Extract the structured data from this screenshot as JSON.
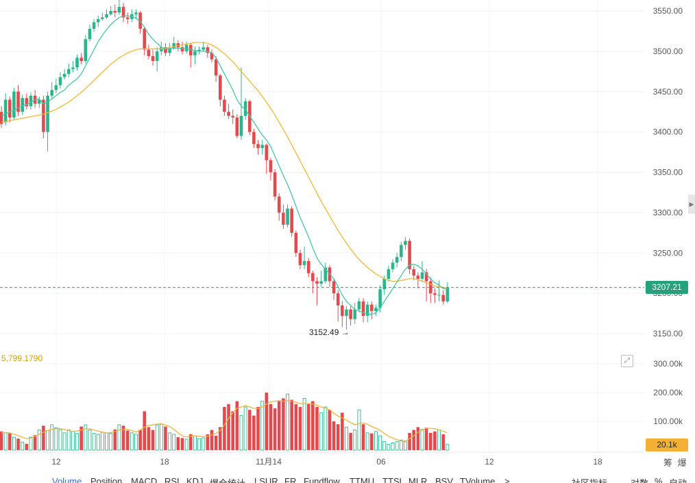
{
  "chart_data": {
    "type": "candlestick",
    "y_axis": {
      "ticks": [
        "3550.00",
        "3500.00",
        "3450.00",
        "3400.00",
        "3350.00",
        "3300.00",
        "3250.00",
        "3200.00",
        "3150.00"
      ],
      "range": [
        3135,
        3565
      ]
    },
    "x_axis": {
      "ticks": [
        "12",
        "18",
        "11月14",
        "06",
        "12",
        "18"
      ]
    },
    "last_price": "3207.21",
    "min_label": "3152.49",
    "candles": [
      [
        3425,
        3410,
        3432,
        3405
      ],
      [
        3412,
        3440,
        3448,
        3408
      ],
      [
        3440,
        3418,
        3444,
        3412
      ],
      [
        3418,
        3450,
        3455,
        3415
      ],
      [
        3450,
        3425,
        3458,
        3420
      ],
      [
        3425,
        3442,
        3446,
        3421
      ],
      [
        3442,
        3432,
        3448,
        3428
      ],
      [
        3432,
        3445,
        3449,
        3428
      ],
      [
        3445,
        3435,
        3452,
        3430
      ],
      [
        3435,
        3440,
        3444,
        3430
      ],
      [
        3440,
        3400,
        3445,
        3392
      ],
      [
        3400,
        3445,
        3450,
        3376
      ],
      [
        3445,
        3452,
        3462,
        3441
      ],
      [
        3452,
        3458,
        3466,
        3448
      ],
      [
        3458,
        3468,
        3474,
        3454
      ],
      [
        3468,
        3472,
        3478,
        3465
      ],
      [
        3472,
        3478,
        3485,
        3468
      ],
      [
        3478,
        3480,
        3488,
        3474
      ],
      [
        3480,
        3492,
        3496,
        3476
      ],
      [
        3492,
        3488,
        3498,
        3484
      ],
      [
        3488,
        3515,
        3520,
        3485
      ],
      [
        3515,
        3528,
        3533,
        3512
      ],
      [
        3528,
        3536,
        3540,
        3524
      ],
      [
        3536,
        3540,
        3544,
        3530
      ],
      [
        3540,
        3542,
        3548,
        3538
      ],
      [
        3542,
        3546,
        3552,
        3540
      ],
      [
        3546,
        3550,
        3556,
        3544
      ],
      [
        3550,
        3548,
        3558,
        3542
      ],
      [
        3548,
        3555,
        3565,
        3545
      ],
      [
        3555,
        3542,
        3560,
        3536
      ],
      [
        3542,
        3540,
        3548,
        3534
      ],
      [
        3540,
        3546,
        3552,
        3536
      ],
      [
        3546,
        3548,
        3552,
        3540
      ],
      [
        3548,
        3528,
        3550,
        3522
      ],
      [
        3528,
        3502,
        3530,
        3495
      ],
      [
        3502,
        3494,
        3508,
        3490
      ],
      [
        3494,
        3488,
        3502,
        3482
      ],
      [
        3488,
        3500,
        3505,
        3475
      ],
      [
        3500,
        3505,
        3512,
        3495
      ],
      [
        3505,
        3498,
        3510,
        3494
      ],
      [
        3498,
        3504,
        3510,
        3494
      ],
      [
        3504,
        3510,
        3518,
        3502
      ],
      [
        3510,
        3505,
        3514,
        3500
      ],
      [
        3505,
        3500,
        3512,
        3496
      ],
      [
        3500,
        3508,
        3512,
        3497
      ],
      [
        3508,
        3495,
        3510,
        3480
      ],
      [
        3495,
        3500,
        3506,
        3484
      ],
      [
        3500,
        3502,
        3506,
        3496
      ],
      [
        3502,
        3505,
        3512,
        3500
      ],
      [
        3505,
        3498,
        3508,
        3492
      ],
      [
        3498,
        3490,
        3502,
        3486
      ],
      [
        3490,
        3470,
        3494,
        3462
      ],
      [
        3470,
        3440,
        3472,
        3432
      ],
      [
        3440,
        3425,
        3445,
        3420
      ],
      [
        3425,
        3420,
        3435,
        3416
      ],
      [
        3420,
        3418,
        3428,
        3410
      ],
      [
        3418,
        3395,
        3422,
        3392
      ],
      [
        3395,
        3420,
        3480,
        3390
      ],
      [
        3420,
        3438,
        3442,
        3415
      ],
      [
        3438,
        3400,
        3440,
        3396
      ],
      [
        3400,
        3385,
        3404,
        3380
      ],
      [
        3385,
        3380,
        3390,
        3372
      ],
      [
        3380,
        3384,
        3390,
        3372
      ],
      [
        3384,
        3365,
        3386,
        3348
      ],
      [
        3365,
        3350,
        3368,
        3340
      ],
      [
        3350,
        3320,
        3354,
        3315
      ],
      [
        3320,
        3300,
        3324,
        3290
      ],
      [
        3300,
        3285,
        3310,
        3280
      ],
      [
        3285,
        3305,
        3310,
        3282
      ],
      [
        3305,
        3275,
        3308,
        3270
      ],
      [
        3275,
        3250,
        3278,
        3245
      ],
      [
        3250,
        3235,
        3254,
        3230
      ],
      [
        3235,
        3240,
        3258,
        3230
      ],
      [
        3240,
        3225,
        3244,
        3220
      ],
      [
        3225,
        3215,
        3228,
        3200
      ],
      [
        3215,
        3212,
        3220,
        3185
      ],
      [
        3212,
        3215,
        3228,
        3208
      ],
      [
        3215,
        3232,
        3238,
        3212
      ],
      [
        3232,
        3215,
        3235,
        3208
      ],
      [
        3215,
        3200,
        3218,
        3192
      ],
      [
        3200,
        3185,
        3204,
        3165
      ],
      [
        3185,
        3172,
        3190,
        3158
      ],
      [
        3172,
        3180,
        3184,
        3155
      ],
      [
        3180,
        3168,
        3184,
        3160
      ],
      [
        3168,
        3180,
        3188,
        3162
      ],
      [
        3180,
        3190,
        3194,
        3176
      ],
      [
        3190,
        3172,
        3194,
        3164
      ],
      [
        3172,
        3186,
        3190,
        3164
      ],
      [
        3186,
        3178,
        3190,
        3168
      ],
      [
        3178,
        3182,
        3186,
        3172
      ],
      [
        3182,
        3205,
        3210,
        3176
      ],
      [
        3205,
        3218,
        3222,
        3198
      ],
      [
        3218,
        3230,
        3234,
        3214
      ],
      [
        3230,
        3238,
        3242,
        3226
      ],
      [
        3238,
        3245,
        3250,
        3232
      ],
      [
        3245,
        3260,
        3264,
        3240
      ],
      [
        3260,
        3265,
        3270,
        3254
      ],
      [
        3265,
        3230,
        3268,
        3224
      ],
      [
        3230,
        3222,
        3234,
        3216
      ],
      [
        3222,
        3218,
        3226,
        3206
      ],
      [
        3218,
        3226,
        3240,
        3214
      ],
      [
        3226,
        3215,
        3230,
        3190
      ],
      [
        3215,
        3200,
        3220,
        3188
      ],
      [
        3200,
        3198,
        3206,
        3188
      ],
      [
        3198,
        3198,
        3216,
        3190
      ],
      [
        3198,
        3190,
        3204,
        3186
      ],
      [
        3190,
        3207,
        3214,
        3188
      ]
    ],
    "ma_fast": [
      3420,
      3422,
      3425,
      3427,
      3430,
      3432,
      3434,
      3437,
      3440,
      3441,
      3435,
      3437,
      3441,
      3445,
      3449,
      3452,
      3458,
      3462,
      3466,
      3472,
      3482,
      3492,
      3502,
      3512,
      3520,
      3527,
      3533,
      3538,
      3542,
      3544,
      3544,
      3543,
      3541,
      3537,
      3530,
      3521,
      3515,
      3510,
      3505,
      3503,
      3503,
      3504,
      3504,
      3503,
      3503,
      3502,
      3501,
      3500,
      3500,
      3500,
      3498,
      3492,
      3482,
      3472,
      3462,
      3452,
      3440,
      3432,
      3428,
      3420,
      3412,
      3404,
      3396,
      3390,
      3382,
      3370,
      3358,
      3346,
      3335,
      3322,
      3308,
      3294,
      3282,
      3270,
      3256,
      3244,
      3236,
      3230,
      3224,
      3218,
      3208,
      3198,
      3190,
      3185,
      3180,
      3178,
      3176,
      3174,
      3174,
      3176,
      3182,
      3190,
      3198,
      3206,
      3214,
      3222,
      3230,
      3235,
      3236,
      3234,
      3230,
      3224,
      3218,
      3213,
      3210,
      3206,
      3205
    ],
    "ma_slow": [
      3412,
      3413,
      3414,
      3415,
      3416,
      3417,
      3418,
      3419,
      3420,
      3421,
      3422,
      3424,
      3426,
      3428,
      3431,
      3434,
      3437,
      3441,
      3445,
      3449,
      3454,
      3459,
      3464,
      3469,
      3474,
      3479,
      3484,
      3488,
      3492,
      3495,
      3498,
      3500,
      3502,
      3503,
      3503,
      3503,
      3503,
      3503,
      3503,
      3504,
      3505,
      3506,
      3507,
      3508,
      3509,
      3510,
      3511,
      3511,
      3511,
      3510,
      3508,
      3505,
      3501,
      3497,
      3492,
      3487,
      3481,
      3475,
      3469,
      3463,
      3457,
      3451,
      3444,
      3437,
      3429,
      3421,
      3412,
      3403,
      3394,
      3384,
      3374,
      3364,
      3354,
      3344,
      3334,
      3324,
      3314,
      3305,
      3296,
      3287,
      3278,
      3270,
      3262,
      3255,
      3248,
      3242,
      3237,
      3232,
      3228,
      3224,
      3221,
      3218,
      3216,
      3215,
      3215,
      3216,
      3217,
      3218,
      3218,
      3217,
      3215,
      3213,
      3211,
      3209,
      3208,
      3207,
      3207
    ],
    "volume": {
      "ticks": [
        "300.00k",
        "200.00k",
        "100.00k"
      ],
      "range": [
        0,
        330
      ],
      "moving_average_label": "5,799.1790",
      "last_label": "20.1k",
      "values": [
        65,
        60,
        58,
        45,
        40,
        28,
        22,
        45,
        52,
        70,
        85,
        68,
        88,
        78,
        72,
        60,
        70,
        65,
        58,
        82,
        88,
        70,
        58,
        55,
        62,
        60,
        58,
        72,
        88,
        85,
        68,
        60,
        55,
        70,
        135,
        80,
        70,
        88,
        90,
        82,
        60,
        55,
        45,
        42,
        38,
        55,
        50,
        40,
        42,
        55,
        70,
        50,
        80,
        150,
        160,
        135,
        170,
        120,
        150,
        140,
        120,
        150,
        170,
        200,
        160,
        145,
        170,
        180,
        195,
        175,
        160,
        150,
        180,
        160,
        170,
        150,
        130,
        150,
        140,
        100,
        90,
        130,
        80,
        60,
        70,
        140,
        90,
        60,
        58,
        65,
        50,
        30,
        20,
        25,
        30,
        35,
        32,
        60,
        70,
        80,
        72,
        78,
        60,
        65,
        70,
        55,
        20
      ],
      "ma": [
        60,
        61,
        60,
        55,
        50,
        45,
        40,
        42,
        48,
        55,
        62,
        68,
        72,
        75,
        74,
        72,
        68,
        65,
        66,
        70,
        74,
        74,
        70,
        66,
        63,
        60,
        61,
        65,
        70,
        72,
        72,
        68,
        63,
        70,
        80,
        86,
        88,
        90,
        92,
        87,
        82,
        72,
        60,
        50,
        46,
        48,
        50,
        48,
        46,
        48,
        53,
        58,
        68,
        88,
        110,
        130,
        145,
        150,
        155,
        150,
        145,
        145,
        150,
        160,
        168,
        170,
        172,
        170,
        172,
        170,
        166,
        162,
        162,
        162,
        160,
        156,
        150,
        146,
        140,
        128,
        118,
        112,
        104,
        96,
        88,
        92,
        95,
        90,
        82,
        76,
        68,
        58,
        48,
        42,
        36,
        32,
        30,
        40,
        50,
        62,
        70,
        76,
        76,
        74,
        70,
        66,
        60
      ]
    }
  },
  "ui": {
    "right_buttons": {
      "chip": "筹",
      "explode": "爆"
    },
    "tabs": [
      "Volume",
      "Position",
      "MACD",
      "RSI",
      "KDJ",
      "爆仓统计",
      "LSUR",
      "FR",
      "Fundflow",
      "TTMU",
      "TTSL",
      "MLR",
      "BSV",
      "TVolume"
    ],
    "tabs_more": ">",
    "right_tabs": {
      "community": "社区指标",
      "log": "对数",
      "percent": "%",
      "auto": "自动"
    }
  }
}
